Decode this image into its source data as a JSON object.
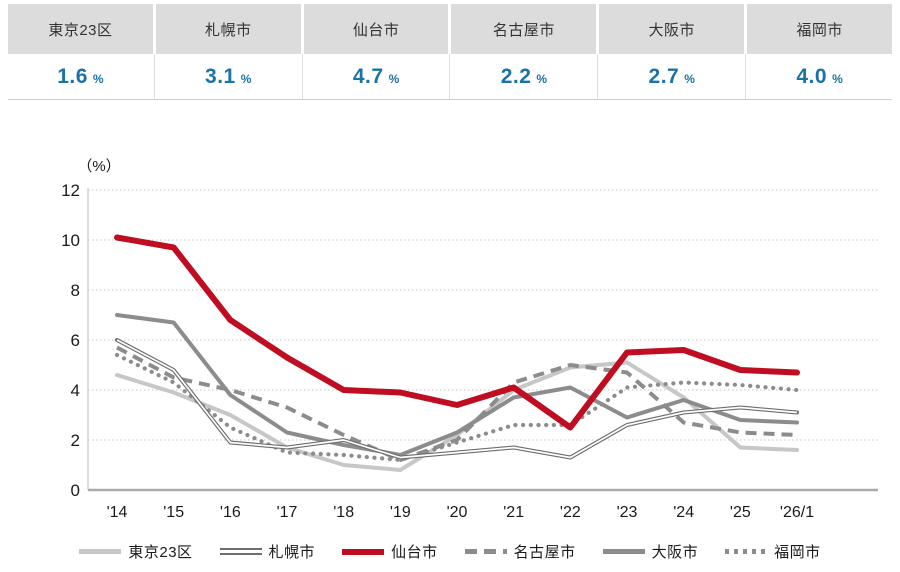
{
  "summary": {
    "unit": "%",
    "items": [
      {
        "label": "東京23区",
        "value": "1.6"
      },
      {
        "label": "札幌市",
        "value": "3.1"
      },
      {
        "label": "仙台市",
        "value": "4.7"
      },
      {
        "label": "名古屋市",
        "value": "2.2"
      },
      {
        "label": "大阪市",
        "value": "2.7"
      },
      {
        "label": "福岡市",
        "value": "4.0"
      }
    ],
    "value_color": "#1b72a7",
    "header_bg": "#dcdcdc"
  },
  "chart_data": {
    "type": "line",
    "y_axis_label": "（%）",
    "categories": [
      "'14",
      "'15",
      "'16",
      "'17",
      "'18",
      "'19",
      "'20",
      "'21",
      "'22",
      "'23",
      "'24",
      "'25",
      "'26/1"
    ],
    "yticks": [
      0,
      2,
      4,
      6,
      8,
      10,
      12
    ],
    "ylim": [
      0,
      12
    ],
    "grid": "dotted horizontal lines",
    "legend_position": "bottom",
    "series": [
      {
        "name": "東京23区",
        "style": "solid-light",
        "color": "#c7c7c7",
        "values": [
          4.6,
          3.9,
          3.0,
          1.7,
          1.0,
          0.8,
          2.2,
          4.0,
          4.9,
          5.1,
          3.7,
          1.7,
          1.6
        ]
      },
      {
        "name": "札幌市",
        "style": "double",
        "color": "#6e6e6e",
        "values": [
          6.0,
          4.8,
          1.9,
          1.7,
          2.0,
          1.3,
          1.5,
          1.7,
          1.3,
          2.6,
          3.1,
          3.3,
          3.1
        ]
      },
      {
        "name": "仙台市",
        "style": "solid-bold",
        "color": "#bf0d22",
        "values": [
          10.1,
          9.7,
          6.8,
          5.3,
          4.0,
          3.9,
          3.4,
          4.1,
          2.5,
          5.5,
          5.6,
          4.8,
          4.7
        ]
      },
      {
        "name": "名古屋市",
        "style": "dashed",
        "color": "#8c8c8c",
        "values": [
          5.7,
          4.5,
          4.0,
          3.3,
          2.2,
          1.2,
          2.0,
          4.3,
          5.0,
          4.7,
          2.7,
          2.3,
          2.2
        ]
      },
      {
        "name": "大阪市",
        "style": "solid",
        "color": "#8c8c8c",
        "values": [
          7.0,
          6.7,
          3.8,
          2.3,
          1.8,
          1.4,
          2.3,
          3.7,
          4.1,
          2.9,
          3.6,
          2.8,
          2.7
        ]
      },
      {
        "name": "福岡市",
        "style": "dotted",
        "color": "#8c8c8c",
        "values": [
          5.4,
          4.3,
          2.5,
          1.5,
          1.4,
          1.2,
          1.9,
          2.6,
          2.6,
          4.1,
          4.3,
          4.2,
          4.0
        ]
      }
    ]
  }
}
